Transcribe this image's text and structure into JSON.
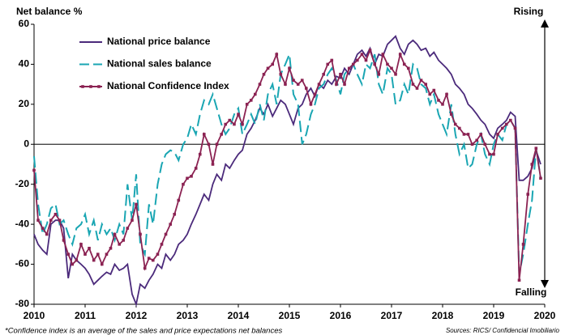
{
  "chart_data": {
    "type": "line",
    "y_label": "Net balance %",
    "top_label": "Rising",
    "bottom_label": "Falling",
    "footnote": "*Confidence index is an average of the sales and price expectations net balances",
    "source": "Sources: RICS/ Confidencial Imobiliario",
    "xlim": [
      2010,
      2020
    ],
    "xticks": [
      2010,
      2011,
      2012,
      2013,
      2014,
      2015,
      2016,
      2017,
      2018,
      2019,
      2020
    ],
    "ylim": [
      -80,
      60
    ],
    "yticks": [
      -80,
      -60,
      -40,
      -20,
      0,
      20,
      40,
      60
    ],
    "x": [
      2010,
      2010.08,
      2010.17,
      2010.25,
      2010.33,
      2010.42,
      2010.5,
      2010.58,
      2010.67,
      2010.75,
      2010.83,
      2010.92,
      2011,
      2011.08,
      2011.17,
      2011.25,
      2011.33,
      2011.42,
      2011.5,
      2011.58,
      2011.67,
      2011.75,
      2011.83,
      2011.92,
      2012,
      2012.08,
      2012.17,
      2012.25,
      2012.33,
      2012.42,
      2012.5,
      2012.58,
      2012.67,
      2012.75,
      2012.83,
      2012.92,
      2013,
      2013.08,
      2013.17,
      2013.25,
      2013.33,
      2013.42,
      2013.5,
      2013.58,
      2013.67,
      2013.75,
      2013.83,
      2013.92,
      2014,
      2014.08,
      2014.17,
      2014.25,
      2014.33,
      2014.42,
      2014.5,
      2014.58,
      2014.67,
      2014.75,
      2014.83,
      2014.92,
      2015,
      2015.08,
      2015.17,
      2015.25,
      2015.33,
      2015.42,
      2015.5,
      2015.58,
      2015.67,
      2015.75,
      2015.83,
      2015.92,
      2016,
      2016.08,
      2016.17,
      2016.25,
      2016.33,
      2016.42,
      2016.5,
      2016.58,
      2016.67,
      2016.75,
      2016.83,
      2016.92,
      2017,
      2017.08,
      2017.17,
      2017.25,
      2017.33,
      2017.42,
      2017.5,
      2017.58,
      2017.67,
      2017.75,
      2017.83,
      2017.92,
      2018,
      2018.08,
      2018.17,
      2018.25,
      2018.33,
      2018.42,
      2018.5,
      2018.58,
      2018.67,
      2018.75,
      2018.83,
      2018.92,
      2019,
      2019.08,
      2019.17,
      2019.25,
      2019.33,
      2019.42,
      2019.5,
      2019.58,
      2019.67,
      2019.75,
      2019.83,
      2019.92
    ],
    "series": [
      {
        "name": "National price balance",
        "color": "#4b2a7b",
        "dash": false,
        "marker": "none",
        "values": [
          -45,
          -50,
          -53,
          -55,
          -40,
          -38,
          -38,
          -42,
          -67,
          -55,
          -58,
          -60,
          -62,
          -65,
          -70,
          -68,
          -66,
          -64,
          -65,
          -60,
          -63,
          -62,
          -60,
          -75,
          -80,
          -70,
          -72,
          -68,
          -65,
          -60,
          -62,
          -55,
          -58,
          -55,
          -50,
          -48,
          -45,
          -40,
          -35,
          -30,
          -25,
          -28,
          -20,
          -15,
          -18,
          -10,
          -12,
          -8,
          -5,
          -3,
          5,
          8,
          12,
          18,
          15,
          20,
          14,
          18,
          22,
          20,
          15,
          10,
          18,
          20,
          25,
          28,
          24,
          30,
          28,
          32,
          30,
          34,
          33,
          38,
          35,
          40,
          45,
          47,
          44,
          48,
          40,
          45,
          44,
          50,
          52,
          54,
          48,
          45,
          50,
          52,
          50,
          47,
          48,
          44,
          46,
          42,
          40,
          38,
          35,
          30,
          28,
          25,
          20,
          18,
          15,
          12,
          10,
          5,
          3,
          8,
          10,
          12,
          16,
          14,
          -18,
          -18,
          -16,
          -12,
          -3,
          -10
        ]
      },
      {
        "name": "National sales balance",
        "color": "#1aa6b3",
        "dash": true,
        "marker": "none",
        "values": [
          -6,
          -30,
          -45,
          -40,
          -32,
          -30,
          -40,
          -38,
          -45,
          -50,
          -42,
          -40,
          -35,
          -45,
          -38,
          -48,
          -40,
          -45,
          -42,
          -48,
          -40,
          -45,
          -20,
          -38,
          -15,
          -50,
          -55,
          -30,
          -40,
          -20,
          -10,
          -5,
          -3,
          -4,
          -8,
          0,
          3,
          10,
          5,
          15,
          22,
          20,
          25,
          18,
          10,
          5,
          8,
          15,
          18,
          5,
          10,
          15,
          10,
          20,
          12,
          25,
          30,
          20,
          35,
          40,
          45,
          25,
          20,
          0,
          5,
          15,
          20,
          28,
          30,
          35,
          38,
          32,
          25,
          35,
          38,
          40,
          35,
          30,
          40,
          38,
          45,
          30,
          25,
          38,
          35,
          20,
          22,
          30,
          25,
          40,
          38,
          30,
          28,
          20,
          25,
          15,
          10,
          5,
          20,
          5,
          -5,
          0,
          -12,
          -10,
          0,
          5,
          -5,
          -10,
          0,
          5,
          2,
          10,
          12,
          8,
          -65,
          -55,
          -40,
          -28,
          -2,
          -17
        ]
      },
      {
        "name": "National Confidence Index",
        "color": "#8b2252",
        "dash": false,
        "marker": "square",
        "values": [
          -13,
          -38,
          -42,
          -45,
          -38,
          -35,
          -38,
          -48,
          -55,
          -60,
          -58,
          -50,
          -55,
          -52,
          -58,
          -55,
          -60,
          -55,
          -52,
          -45,
          -50,
          -48,
          -42,
          -38,
          -30,
          -45,
          -62,
          -57,
          -58,
          -55,
          -50,
          -45,
          -40,
          -35,
          -28,
          -20,
          -17,
          -16,
          -12,
          -5,
          5,
          0,
          -10,
          0,
          5,
          10,
          12,
          10,
          15,
          10,
          20,
          22,
          25,
          30,
          35,
          38,
          40,
          45,
          35,
          30,
          38,
          32,
          30,
          32,
          28,
          20,
          25,
          30,
          35,
          40,
          42,
          30,
          35,
          30,
          38,
          40,
          42,
          45,
          42,
          47,
          40,
          35,
          45,
          40,
          38,
          35,
          45,
          40,
          38,
          30,
          28,
          32,
          30,
          25,
          27,
          22,
          20,
          25,
          15,
          10,
          8,
          5,
          5,
          0,
          2,
          5,
          0,
          -5,
          -5,
          5,
          8,
          10,
          12,
          8,
          -68,
          -50,
          -25,
          -10,
          -2,
          -17
        ]
      }
    ]
  }
}
